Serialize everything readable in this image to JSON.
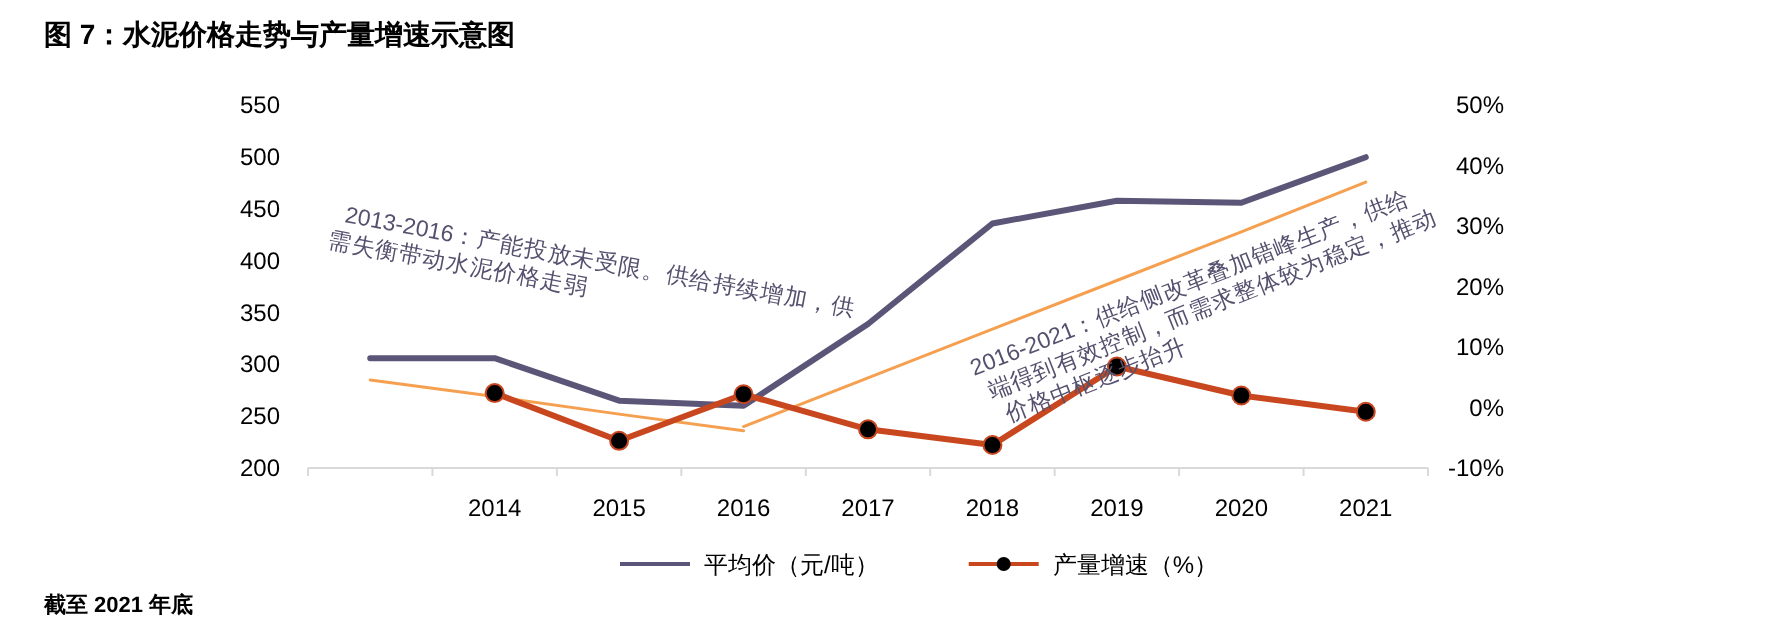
{
  "chart_data": {
    "type": "line",
    "title": "图 7：水泥价格走势与产量增速示意图",
    "categories": [
      null,
      "2014",
      "2015",
      "2016",
      "2017",
      "2018",
      "2019",
      "2020",
      "2021"
    ],
    "series": [
      {
        "name": "平均价（元/吨）",
        "color": "#5b5677",
        "values": [
          306,
          306,
          265,
          260,
          339,
          436,
          458,
          456,
          500
        ],
        "marker": "none"
      },
      {
        "name": "产量增速（%）",
        "color": "#c9471f",
        "values": [
          null,
          2.4,
          -5.5,
          2.2,
          -3.6,
          -6.2,
          6.8,
          2,
          -0.7
        ],
        "axis": "y2",
        "marker": "circle"
      },
      {
        "type": "line",
        "color": "#f5a050",
        "values": [
          285,
          269,
          252,
          236,
          null,
          null,
          null,
          null,
          null
        ]
      },
      {
        "type": "line",
        "color": "#f5a050",
        "values": [
          null,
          null,
          null,
          240,
          287,
          334,
          381,
          428,
          476
        ]
      }
    ],
    "ylim": [
      200,
      550
    ],
    "yticks": [
      200,
      250,
      300,
      350,
      400,
      450,
      500,
      550
    ],
    "y2lim": [
      -10,
      50
    ],
    "y2ticks": [
      {
        "value": -10,
        "label": "-10%"
      },
      {
        "value": 0,
        "label": "0%"
      },
      {
        "value": 10,
        "label": "10%"
      },
      {
        "value": 20,
        "label": "20%"
      },
      {
        "value": 30,
        "label": "30%"
      },
      {
        "value": 40,
        "label": "40%"
      },
      {
        "value": 50,
        "label": "50%"
      }
    ],
    "legend": "bottom",
    "annotations": [
      "2013-2016：产能投放未受限。供给持续增加，供需失衡带动水泥价格走弱",
      "2016-2021：供给侧改革叠加错峰生产，供给端得到有效控制，而需求整体较为稳定，推动价格中枢逐步抬升",
      "截至 2021 年底"
    ]
  }
}
